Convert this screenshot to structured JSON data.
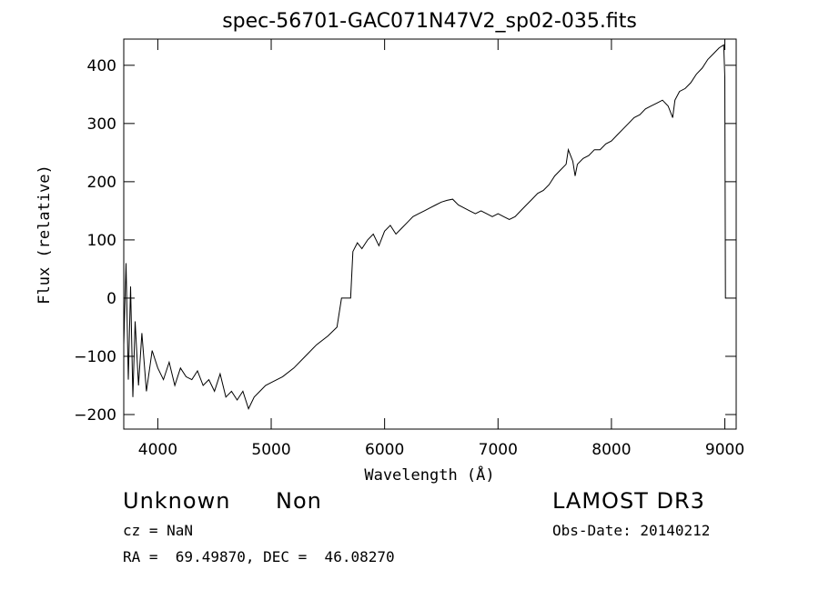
{
  "chart_data": {
    "type": "line",
    "title": "spec-56701-GAC071N47V2_sp02-035.fits",
    "xlabel": "Wavelength (Å)",
    "ylabel": "Flux (relative)",
    "xlim": [
      3700,
      9100
    ],
    "ylim": [
      -225,
      445
    ],
    "xticks": [
      4000,
      5000,
      6000,
      7000,
      8000,
      9000
    ],
    "yticks": [
      -200,
      -100,
      0,
      100,
      200,
      300,
      400
    ],
    "grid": false,
    "series": [
      {
        "x": [
          3700,
          3720,
          3740,
          3760,
          3780,
          3800,
          3830,
          3860,
          3900,
          3950,
          4000,
          4050,
          4100,
          4150,
          4200,
          4250,
          4300,
          4350,
          4400,
          4450,
          4500,
          4550,
          4600,
          4650,
          4700,
          4750,
          4800,
          4850,
          4900,
          4950,
          5000,
          5100,
          5200,
          5300,
          5400,
          5500,
          5580,
          5620,
          5640,
          5700,
          5720,
          5760,
          5800,
          5850,
          5900,
          5950,
          6000,
          6050,
          6100,
          6150,
          6200,
          6250,
          6300,
          6350,
          6400,
          6450,
          6500,
          6550,
          6600,
          6650,
          6700,
          6750,
          6800,
          6850,
          6900,
          6950,
          7000,
          7050,
          7100,
          7150,
          7200,
          7250,
          7300,
          7350,
          7400,
          7450,
          7500,
          7550,
          7600,
          7620,
          7640,
          7660,
          7680,
          7700,
          7750,
          7800,
          7850,
          7900,
          7950,
          8000,
          8050,
          8100,
          8150,
          8200,
          8250,
          8300,
          8350,
          8400,
          8450,
          8500,
          8540,
          8560,
          8600,
          8650,
          8700,
          8750,
          8800,
          8850,
          8900,
          8950,
          8990,
          9000,
          9005,
          9010
        ],
        "y": [
          -80,
          60,
          -140,
          20,
          -170,
          -40,
          -150,
          -60,
          -160,
          -90,
          -120,
          -140,
          -110,
          -150,
          -120,
          -135,
          -140,
          -125,
          -150,
          -140,
          -160,
          -130,
          -170,
          -160,
          -175,
          -160,
          -190,
          -170,
          -160,
          -150,
          -145,
          -135,
          -120,
          -100,
          -80,
          -65,
          -50,
          0,
          0,
          0,
          80,
          95,
          85,
          100,
          110,
          90,
          115,
          125,
          110,
          120,
          130,
          140,
          145,
          150,
          155,
          160,
          165,
          168,
          170,
          160,
          155,
          150,
          145,
          150,
          145,
          140,
          145,
          140,
          135,
          140,
          150,
          160,
          170,
          180,
          185,
          195,
          210,
          220,
          230,
          255,
          245,
          235,
          210,
          230,
          240,
          245,
          255,
          255,
          265,
          270,
          280,
          290,
          300,
          310,
          315,
          325,
          330,
          335,
          340,
          330,
          310,
          340,
          355,
          360,
          370,
          385,
          395,
          410,
          420,
          430,
          435,
          380,
          0,
          0
        ]
      }
    ]
  },
  "header": {
    "object_class": "Unknown",
    "object_subclass": "Non",
    "redshift": "cz = NaN",
    "coordinates": "RA =  69.49870, DEC =  46.08270",
    "survey": "LAMOST DR3",
    "obs_date": "Obs-Date: 20140212"
  }
}
